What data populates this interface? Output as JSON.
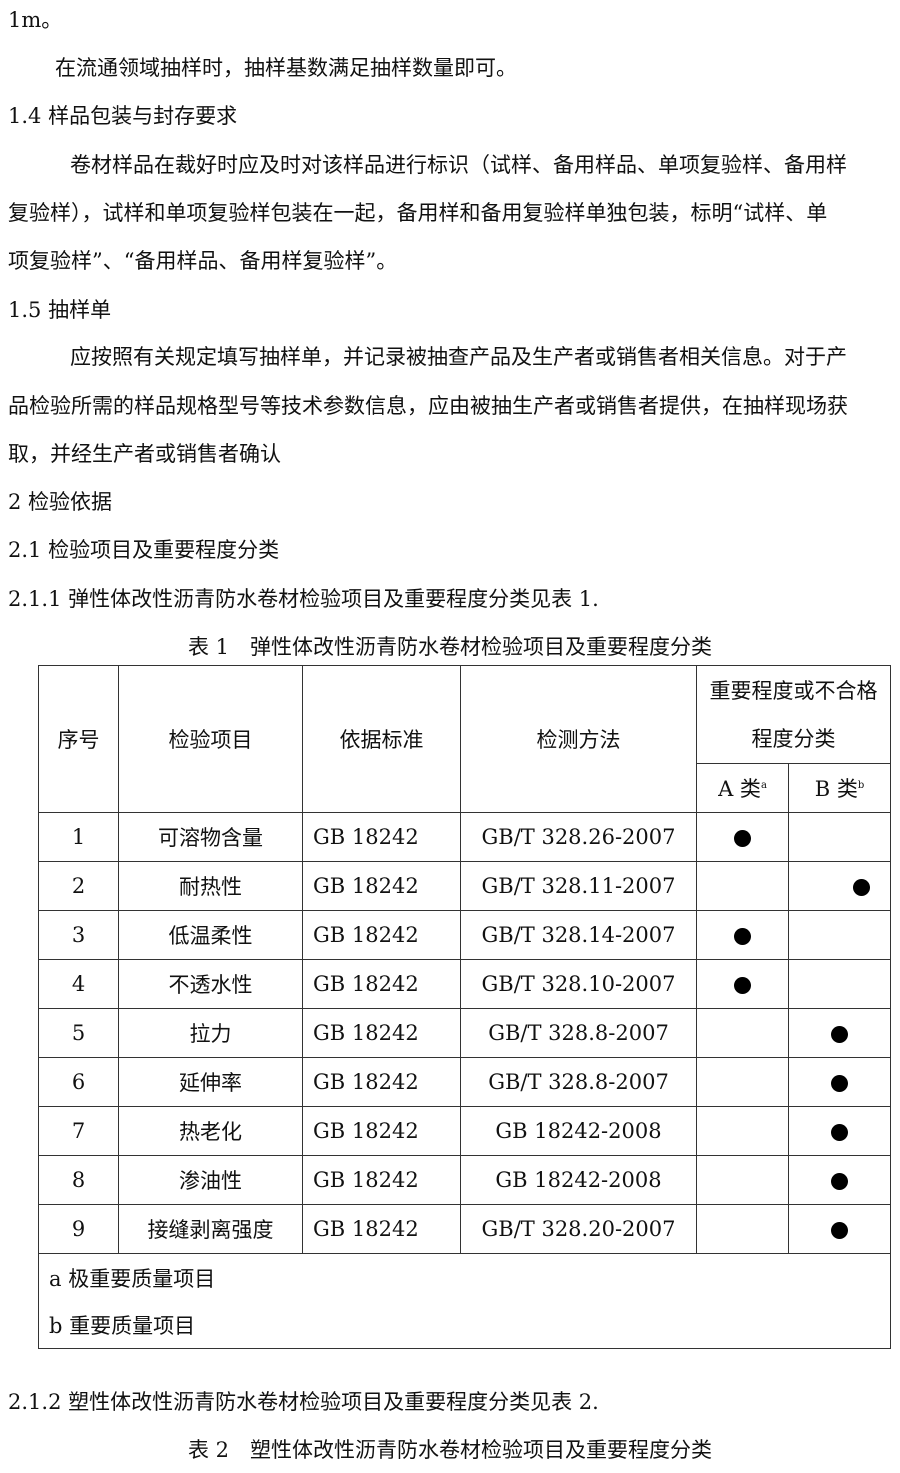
{
  "paragraphs": [
    "1m。",
    "在流通领域抽样时，抽样基数满足抽样数量即可。",
    "1.4 样品包装与封存要求",
    "卷材样品在裁好时应及时对该样品进行标识（试样、备用样品、单项复验样、备用样",
    "复验样），试样和单项复验样包装在一起，备用样和备用复验样单独包装，标明“试样、单",
    "项复验样”、“备用样品、备用样复验样”。",
    "1.5 抽样单",
    "应按照有关规定填写抽样单，并记录被抽查产品及生产者或销售者相关信息。对于产",
    "品检验所需的样品规格型号等技术参数信息，应由被抽生产者或销售者提供，在抽样现场获",
    "取，并经生产者或销售者确认",
    "2 检验依据",
    "2.1 检验项目及重要程度分类",
    "2.1.1 弹性体改性沥青防水卷材检验项目及重要程度分类见表 1."
  ],
  "table1": {
    "caption": "表 1　弹性体改性沥青防水卷材检验项目及重要程度分类",
    "headers": {
      "no": "序号",
      "item": "检验项目",
      "basis": "依据标准",
      "method": "检测方法",
      "class_group": "重要程度或不合格程度分类",
      "class_a": "A 类",
      "class_a_sup": "a",
      "class_b": "B 类",
      "class_b_sup": "b"
    },
    "rows": [
      {
        "no": "1",
        "item": "可溶物含量",
        "basis": "GB 18242",
        "method": "GB/T 328.26-2007",
        "class": "A"
      },
      {
        "no": "2",
        "item": "耐热性",
        "basis": "GB 18242",
        "method": "GB/T 328.11-2007",
        "class": "B"
      },
      {
        "no": "3",
        "item": "低温柔性",
        "basis": "GB 18242",
        "method": "GB/T 328.14-2007",
        "class": "A"
      },
      {
        "no": "4",
        "item": "不透水性",
        "basis": "GB 18242",
        "method": "GB/T 328.10-2007",
        "class": "A"
      },
      {
        "no": "5",
        "item": "拉力",
        "basis": "GB 18242",
        "method": "GB/T 328.8-2007",
        "class": "B"
      },
      {
        "no": "6",
        "item": "延伸率",
        "basis": "GB 18242",
        "method": "GB/T 328.8-2007",
        "class": "B"
      },
      {
        "no": "7",
        "item": "热老化",
        "basis": "GB 18242",
        "method": "GB 18242-2008",
        "class": "B"
      },
      {
        "no": "8",
        "item": "渗油性",
        "basis": "GB 18242",
        "method": "GB 18242-2008",
        "class": "B"
      },
      {
        "no": "9",
        "item": "接缝剥离强度",
        "basis": "GB 18242",
        "method": "GB/T 328.20-2007",
        "class": "B"
      }
    ],
    "footnotes": [
      "a  极重要质量项目",
      "b  重要质量项目"
    ]
  },
  "after": {
    "paragraph": "2.1.2 塑性体改性沥青防水卷材检验项目及重要程度分类见表 2.",
    "table2_caption": "表 2　塑性体改性沥青防水卷材检验项目及重要程度分类"
  }
}
